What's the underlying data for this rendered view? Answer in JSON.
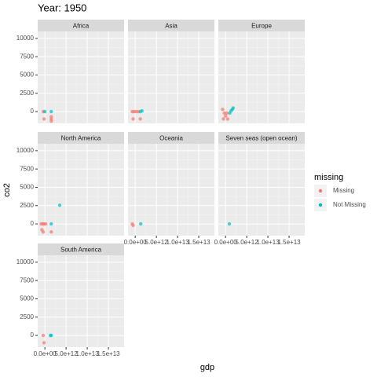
{
  "chart_data": {
    "type": "scatter",
    "title": "Year: 1950",
    "xlabel": "gdp",
    "ylabel": "co2",
    "legend_title": "missing",
    "legend": "right",
    "grid": true,
    "series": [
      {
        "name": "Missing",
        "color": "#F8766D"
      },
      {
        "name": "Not Missing",
        "color": "#00BFC4"
      }
    ],
    "xlim": [
      -1700000000000.0,
      18700000000000.0
    ],
    "xticks": [
      {
        "value": 0,
        "label": "0.0e+00"
      },
      {
        "value": 5000000000000.0,
        "label": "5.0e+12"
      },
      {
        "value": 10000000000000.0,
        "label": "1.0e+13"
      },
      {
        "value": 15000000000000.0,
        "label": "1.5e+13"
      }
    ],
    "ylim": [
      -1600,
      10950
    ],
    "yticks": [
      0,
      2500,
      5000,
      7500,
      10000
    ],
    "facets": [
      {
        "title": "Africa",
        "series": [
          {
            "x": [
              -400000000000.0,
              -200000000000.0,
              1500000000000.0,
              1500000000000.0,
              1500000000000.0
            ],
            "y": [
              0,
              -1000,
              -700,
              -1000,
              -1300
            ]
          },
          {
            "x": [
              0,
              1500000000000.0
            ],
            "y": [
              0,
              0
            ]
          }
        ]
      },
      {
        "title": "Asia",
        "series": [
          {
            "x": [
              -700000000000.0,
              -300000000000.0,
              200000000000.0,
              700000000000.0,
              -500000000000.0,
              1200000000000.0
            ],
            "y": [
              0,
              0,
              0,
              0,
              -1000,
              -1000
            ]
          },
          {
            "x": [
              1200000000000.0,
              1600000000000.0
            ],
            "y": [
              0,
              100
            ]
          }
        ]
      },
      {
        "title": "Europe",
        "series": [
          {
            "x": [
              -700000000000.0,
              -300000000000.0,
              0,
              500000000000.0,
              -500000000000.0,
              300000000000.0
            ],
            "y": [
              300,
              -200,
              -600,
              -1000,
              -1000,
              -200
            ]
          },
          {
            "x": [
              1000000000000.0,
              1300000000000.0,
              1600000000000.0,
              1800000000000.0
            ],
            "y": [
              -200,
              100,
              300,
              500
            ]
          }
        ]
      },
      {
        "title": "North America",
        "series": [
          {
            "x": [
              -900000000000.0,
              -500000000000.0,
              -200000000000.0,
              200000000000.0,
              -700000000000.0,
              -400000000000.0,
              1500000000000.0
            ],
            "y": [
              0,
              0,
              0,
              0,
              -800,
              -1100,
              -1100
            ]
          },
          {
            "x": [
              1500000000000.0,
              3500000000000.0
            ],
            "y": [
              0,
              2550
            ]
          }
        ]
      },
      {
        "title": "Oceania",
        "series": [
          {
            "x": [
              -700000000000.0,
              -500000000000.0
            ],
            "y": [
              0,
              -200
            ]
          },
          {
            "x": [
              1300000000000.0
            ],
            "y": [
              0
            ]
          }
        ]
      },
      {
        "title": "Seven seas (open ocean)",
        "series": [
          {
            "x": [],
            "y": []
          },
          {
            "x": [
              900000000000.0
            ],
            "y": [
              0
            ]
          }
        ]
      },
      {
        "title": "South America",
        "series": [
          {
            "x": [
              -400000000000.0,
              -200000000000.0
            ],
            "y": [
              0,
              -1000
            ]
          },
          {
            "x": [
              1300000000000.0,
              1500000000000.0
            ],
            "y": [
              0,
              0
            ]
          }
        ]
      }
    ]
  }
}
